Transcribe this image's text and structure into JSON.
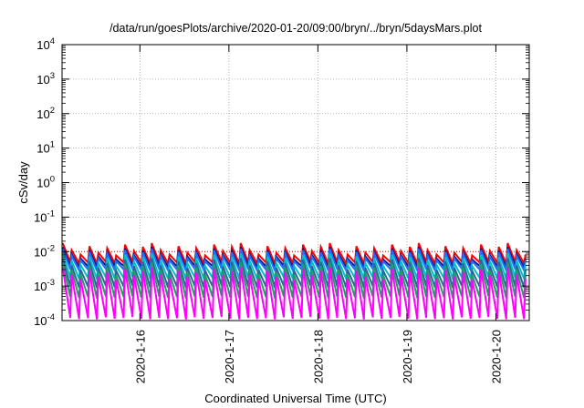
{
  "chart_data": {
    "type": "line",
    "title": "/data/run/goesPlots/archive/2020-01-20/09:00/bryn/../bryn/5daysMars.plot",
    "xlabel": "Coordinated Universal Time (UTC)",
    "ylabel": "cSv/day",
    "x_range": [
      "2020-01-15 03:00",
      "2020-01-20 09:00"
    ],
    "x_ticks": [
      "2020-1-16",
      "2020-1-17",
      "2020-1-18",
      "2020-1-19",
      "2020-1-20"
    ],
    "y_scale": "log",
    "ylim": [
      0.0001,
      10000
    ],
    "y_ticks": [
      {
        "base": "10",
        "exp": "-4",
        "value": 0.0001
      },
      {
        "base": "10",
        "exp": "-3",
        "value": 0.001
      },
      {
        "base": "10",
        "exp": "-2",
        "value": 0.01
      },
      {
        "base": "10",
        "exp": "-1",
        "value": 0.1
      },
      {
        "base": "10",
        "exp": "0",
        "value": 1
      },
      {
        "base": "10",
        "exp": "1",
        "value": 10
      },
      {
        "base": "10",
        "exp": "2",
        "value": 100
      },
      {
        "base": "10",
        "exp": "3",
        "value": 1000
      },
      {
        "base": "10",
        "exp": "4",
        "value": 10000
      }
    ],
    "grid": true,
    "reference_line": {
      "value": 0.01,
      "color": "#cc0000",
      "style": "dotted"
    },
    "sawtooth": {
      "cycle_days": 0.1,
      "start": "2020-01-15 03:00",
      "end": "2020-01-20 09:00",
      "amplitude_pattern": [
        1.6,
        1.0,
        0.75,
        1.3,
        0.85,
        1.15,
        0.7,
        1.45,
        0.95,
        1.25
      ]
    },
    "series": [
      {
        "color": "#ff0000",
        "peak": 0.011,
        "trough": 0.0045
      },
      {
        "color": "#1a1a7a",
        "peak": 0.0085,
        "trough": 0.0035
      },
      {
        "color": "#2070ff",
        "peak": 0.0075,
        "trough": 0.0028
      },
      {
        "color": "#00c0c0",
        "peak": 0.0055,
        "trough": 0.0016
      },
      {
        "color": "#3060a0",
        "peak": 0.004,
        "trough": 0.0009
      },
      {
        "color": "#20a060",
        "peak": 0.003,
        "trough": 0.00045
      },
      {
        "color": "#ff00ff",
        "peak": 0.0022,
        "trough": 0.00011
      }
    ]
  }
}
